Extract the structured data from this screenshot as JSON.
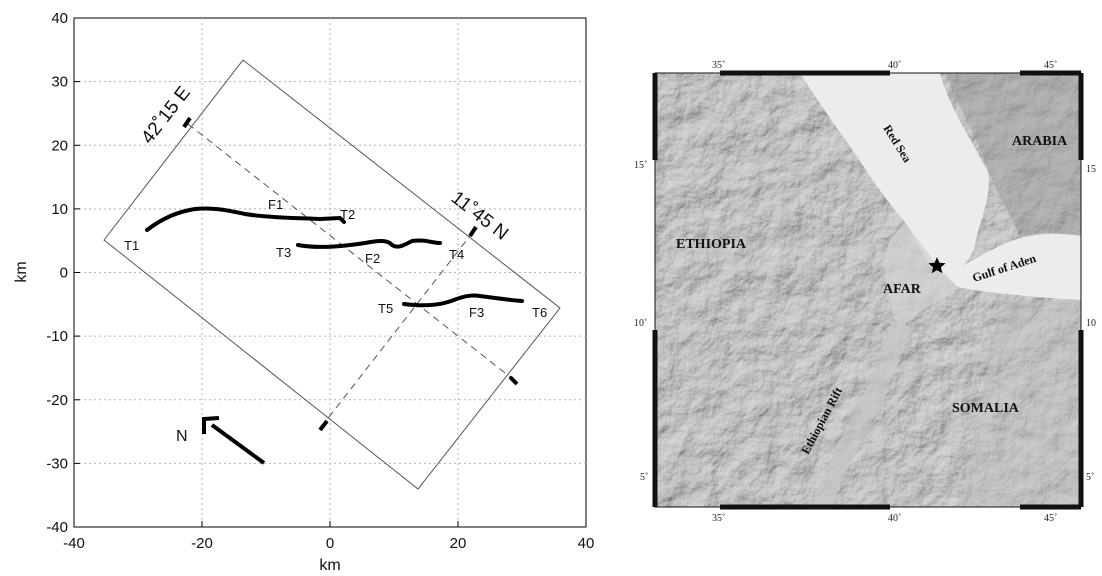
{
  "left_plot": {
    "xlabel": "km",
    "ylabel": "km",
    "x_ticks": [
      "-40",
      "-20",
      "0",
      "20",
      "40"
    ],
    "y_ticks": [
      "40",
      "30",
      "20",
      "10",
      "0",
      "-10",
      "-20",
      "-30",
      "-40"
    ],
    "lon_label": "42˚15 E",
    "lat_label": "11˚45 N",
    "north_label": "N",
    "fault_labels": [
      "F1",
      "F2",
      "F3"
    ],
    "tip_labels": [
      "T1",
      "T2",
      "T3",
      "T4",
      "T5",
      "T6"
    ]
  },
  "right_map": {
    "places": {
      "red_sea": "Red Sea",
      "arabia": "ARABIA",
      "ethiopia": "ETHIOPIA",
      "afar": "AFAR",
      "gulf_of_aden": "Gulf of Aden",
      "ethiopian_rift": "Ethiopian Rift",
      "somalia": "SOMALIA"
    },
    "lon_ticks": [
      "35˚",
      "40˚",
      "45˚"
    ],
    "lat_ticks": [
      "15˚",
      "10˚",
      "5˚"
    ],
    "lat_ticks_right": [
      "15",
      "10",
      "5˚"
    ],
    "colors": {
      "land": "#a8a8a8",
      "sea": "#ececec",
      "frame": "#111111"
    }
  }
}
